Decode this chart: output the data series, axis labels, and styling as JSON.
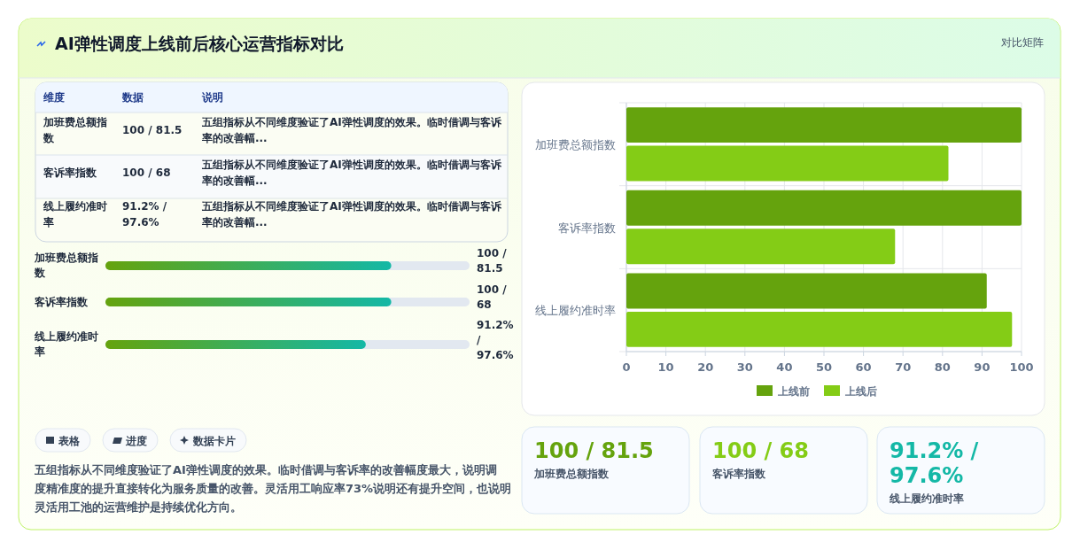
{
  "chart_data": [
    {
      "type": "other",
      "title": "AI弹性调度上线前后核心运营指标对比",
      "subtitle": "对比矩阵",
      "annotations": [
        "维度",
        "数据",
        "说明",
        "加班费总额指数",
        "100 / 81.5",
        "五组指标从不同维度验证了AI弹性调度的效果。临时借调与客诉率的改善幅...",
        "客诉率指数",
        "100 / 68",
        "五组指标从不同维度验证了AI弹性调度的效果。临时借调与客诉率的改善幅...",
        "线上履约准时率",
        "91.2% / 97.6%",
        "五组指标从不同维度验证了AI弹性调度的效果。临时借调与客诉率的改善幅..."
      ]
    },
    {
      "type": "other",
      "annotations": [
        "加班费总额指数",
        "100 / 81.5",
        "客诉率指数",
        "100 / 68",
        "线上履约准时率",
        "91.2% / 97.6%"
      ]
    },
    {
      "type": "other",
      "annotations": [
        "表格",
        "进度",
        "数据卡片",
        "五组指标从不同维度验证了AI弹性调度的效果。临时借调与客诉率的改善幅度最大，说明调度精准度的提升直接转化为服务质量的改善。灵活用工响应率73%说明还有提升空间，也说明灵活用工池的运营维护是持续优化方向。"
      ]
    },
    {
      "type": "bar",
      "orientation": "horizontal",
      "categories": [
        "加班费总额指数",
        "客诉率指数",
        "线上履约准时率"
      ],
      "series": [
        {
          "name": "上线前",
          "color": "#65a30d",
          "values": [
            100,
            100,
            91.2
          ]
        },
        {
          "name": "上线后",
          "color": "#84cc16",
          "values": [
            81.5,
            68,
            97.6
          ]
        }
      ],
      "xlim": [
        0,
        100
      ],
      "xticks": [
        0,
        10,
        20,
        30,
        40,
        50,
        60,
        70,
        80,
        90,
        100
      ],
      "grid": true,
      "legend": "bottom"
    },
    {
      "type": "other",
      "annotations": [
        "100 / 81.5",
        "加班费总额指数",
        "100 / 68",
        "客诉率指数",
        "91.2% / 97.6%",
        "线上履约准时率"
      ]
    }
  ]
}
